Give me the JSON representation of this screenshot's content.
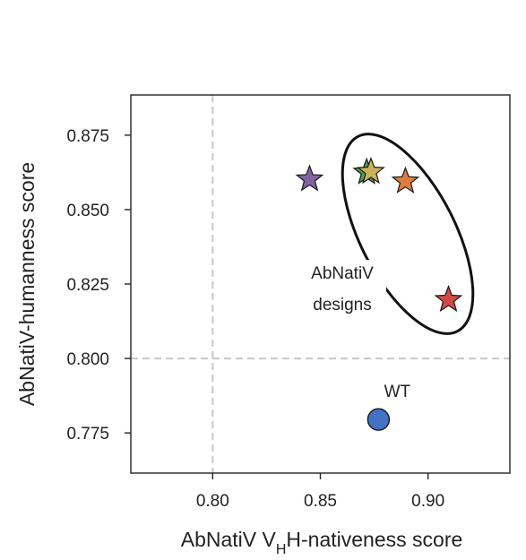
{
  "chart_data": {
    "type": "scatter",
    "title": "",
    "xlabel": {
      "prefix": "AbNatiV V",
      "sub": "H",
      "suffix": "H-nativeness score"
    },
    "ylabel": "AbNatiV-humanness score",
    "xlim": [
      0.762,
      0.938
    ],
    "ylim": [
      0.7615,
      0.8885
    ],
    "xticks": [
      {
        "value": 0.8,
        "label": "0.80"
      },
      {
        "value": 0.85,
        "label": "0.85"
      },
      {
        "value": 0.9,
        "label": "0.90"
      }
    ],
    "yticks": [
      {
        "value": 0.775,
        "label": "0.775"
      },
      {
        "value": 0.8,
        "label": "0.800"
      },
      {
        "value": 0.825,
        "label": "0.825"
      },
      {
        "value": 0.85,
        "label": "0.850"
      },
      {
        "value": 0.875,
        "label": "0.875"
      }
    ],
    "reference_lines": {
      "x": 0.8,
      "y": 0.8,
      "style": "dashed",
      "color": "#c8c8c8"
    },
    "grid": false,
    "points": [
      {
        "marker": "circle",
        "color": "#4472c4",
        "x": 0.877,
        "y": 0.7795,
        "label": "WT"
      },
      {
        "marker": "star",
        "color": "#8064a2",
        "x": 0.845,
        "y": 0.8602
      },
      {
        "marker": "star",
        "color": "#4e9a5a",
        "x": 0.8715,
        "y": 0.8625
      },
      {
        "marker": "star",
        "color": "#c9b45a",
        "x": 0.8735,
        "y": 0.8627
      },
      {
        "marker": "star",
        "color": "#e07b3f",
        "x": 0.8895,
        "y": 0.8595
      },
      {
        "marker": "star",
        "color": "#d04a45",
        "x": 0.9095,
        "y": 0.8197
      }
    ],
    "annotations": [
      {
        "text_lines": [
          "AbNatiV",
          "designs"
        ],
        "shape": "ellipse-outline"
      }
    ]
  }
}
